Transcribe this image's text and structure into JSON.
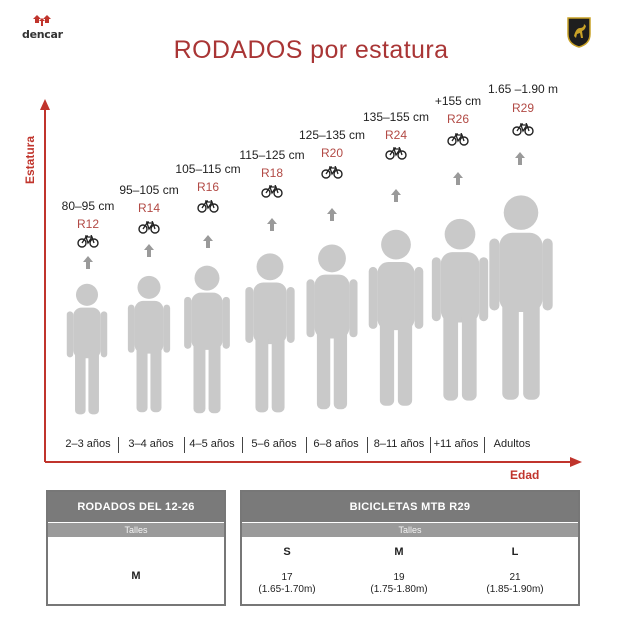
{
  "brand": {
    "name": "dencar"
  },
  "emblem": {
    "icon": "bull-shield-emblem-icon",
    "color": "#c9a227"
  },
  "title": "RODADOS por estatura",
  "axes": {
    "y_label": "Estatura",
    "x_label": "Edad",
    "color": "#c0342c"
  },
  "groups": [
    {
      "height": "80–95 cm",
      "size": "R12",
      "age": "2–3 años"
    },
    {
      "height": "95–105 cm",
      "size": "R14",
      "age": "3–4 años"
    },
    {
      "height": "105–115 cm",
      "size": "R16",
      "age": "4–5 años"
    },
    {
      "height": "115–125 cm",
      "size": "R18",
      "age": "5–6 años"
    },
    {
      "height": "125–135 cm",
      "size": "R20",
      "age": "6–8 años"
    },
    {
      "height": "135–155 cm",
      "size": "R24",
      "age": "8–11 años"
    },
    {
      "height": "+155 cm",
      "size": "R26",
      "age": "+11 años"
    },
    {
      "height": "1.65 –1.90 m",
      "size": "R29",
      "age": "Adultos"
    }
  ],
  "table_left": {
    "title": "RODADOS DEL 12-26",
    "subtitle": "Talles",
    "sizes": [
      {
        "size": "M"
      }
    ]
  },
  "table_right": {
    "title": "BICICLETAS MTB R29",
    "subtitle": "Talles",
    "sizes": [
      {
        "size": "S",
        "frame": "17",
        "range": "(1.65-1.70m)"
      },
      {
        "size": "M",
        "frame": "19",
        "range": "(1.75-1.80m)"
      },
      {
        "size": "L",
        "frame": "21",
        "range": "(1.85-1.90m)"
      }
    ]
  },
  "colors": {
    "accent_red": "#b24a45",
    "silhouette": "#c9c9c9",
    "table_header": "#7a7a7a"
  }
}
